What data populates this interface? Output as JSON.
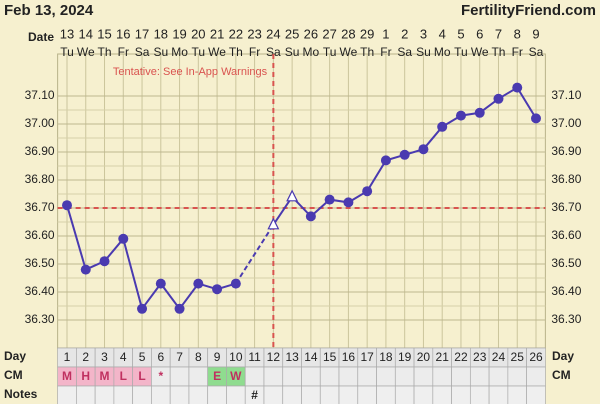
{
  "header": {
    "date": "Feb 13, 2024",
    "site": "FertilityFriend.com"
  },
  "chart_data": {
    "type": "line",
    "annotation": "Tentative: See In-App Warnings",
    "row_labels": {
      "date": "Date",
      "day": "Day",
      "cm": "CM",
      "notes": "Notes"
    },
    "categories": [
      "13",
      "14",
      "15",
      "16",
      "17",
      "18",
      "19",
      "20",
      "21",
      "22",
      "23",
      "24",
      "25",
      "26",
      "27",
      "28",
      "29",
      "1",
      "2",
      "3",
      "4",
      "5",
      "6",
      "7",
      "8",
      "9"
    ],
    "weekdays": [
      "Tu",
      "We",
      "Th",
      "Fr",
      "Sa",
      "Su",
      "Mo",
      "Tu",
      "We",
      "Th",
      "Fr",
      "Sa",
      "Su",
      "Mo",
      "Tu",
      "We",
      "Th",
      "Fr",
      "Sa",
      "Su",
      "Mo",
      "Tu",
      "We",
      "Th",
      "Fr",
      "Sa"
    ],
    "days": [
      1,
      2,
      3,
      4,
      5,
      6,
      7,
      8,
      9,
      10,
      11,
      12,
      13,
      14,
      15,
      16,
      17,
      18,
      19,
      20,
      21,
      22,
      23,
      24,
      25,
      26
    ],
    "cm": [
      "M",
      "H",
      "M",
      "L",
      "L",
      "*",
      null,
      null,
      "E",
      "W",
      null,
      null,
      null,
      null,
      null,
      null,
      null,
      null,
      null,
      null,
      null,
      null,
      null,
      null,
      null,
      null
    ],
    "notes": [
      null,
      null,
      null,
      null,
      null,
      null,
      null,
      null,
      null,
      null,
      "#",
      null,
      null,
      null,
      null,
      null,
      null,
      null,
      null,
      null,
      null,
      null,
      null,
      null,
      null,
      null
    ],
    "values": [
      36.71,
      36.48,
      36.51,
      36.59,
      36.34,
      36.43,
      36.34,
      36.43,
      36.41,
      36.43,
      null,
      36.64,
      36.74,
      36.67,
      36.73,
      36.72,
      36.76,
      36.87,
      36.89,
      36.91,
      36.99,
      37.03,
      37.04,
      37.09,
      37.13,
      37.02
    ],
    "color": "#4a3ab0",
    "triangle_dates": [
      "24",
      "25"
    ],
    "coverline": 36.7,
    "ovulation_date": "24",
    "marker_color": "#d9534f",
    "cm_colors": {
      "M": "#f3b5c9",
      "H": "#f3b5c9",
      "L": "#f3b5c9",
      "E": "#8fdc8f",
      "W": "#8fdc8f"
    },
    "ylim": [
      36.2,
      37.25
    ],
    "yticks": [
      {
        "value": 36.3,
        "label": "36.30"
      },
      {
        "value": 36.4,
        "label": "36.40"
      },
      {
        "value": 36.5,
        "label": "36.50"
      },
      {
        "value": 36.6,
        "label": "36.60"
      },
      {
        "value": 36.7,
        "label": "36.70"
      },
      {
        "value": 36.8,
        "label": "36.80"
      },
      {
        "value": 36.9,
        "label": "36.90"
      },
      {
        "value": 37.0,
        "label": "37.00"
      },
      {
        "value": 37.1,
        "label": "37.10"
      }
    ]
  }
}
